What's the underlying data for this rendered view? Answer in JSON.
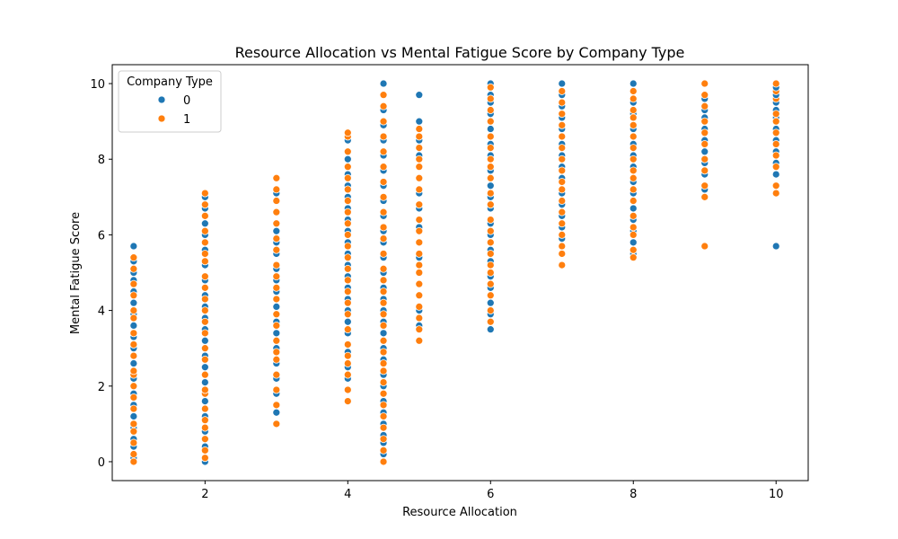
{
  "chart_data": {
    "type": "scatter",
    "title": "Resource Allocation vs Mental Fatigue Score by Company Type",
    "xlabel": "Resource Allocation",
    "ylabel": "Mental Fatigue Score",
    "xlim": [
      0.7,
      10.45
    ],
    "ylim": [
      -0.5,
      10.5
    ],
    "xticks": [
      2,
      4,
      6,
      8,
      10
    ],
    "yticks": [
      0,
      2,
      4,
      6,
      8,
      10
    ],
    "grid": false,
    "legend": {
      "title": "Company Type",
      "placement": "top-left"
    },
    "series": [
      {
        "name": "0",
        "color": "#1f77b4",
        "columns": [
          {
            "x": 1,
            "y": [
              0.1,
              0.4,
              0.6,
              0.9,
              1.2,
              1.5,
              1.8,
              2.2,
              2.6,
              3.0,
              3.3,
              3.6,
              3.9,
              4.2,
              4.5,
              4.8,
              5.0,
              5.3,
              5.7
            ]
          },
          {
            "x": 2,
            "y": [
              0.0,
              0.4,
              0.8,
              1.2,
              1.6,
              2.1,
              2.5,
              2.8,
              3.2,
              3.5,
              3.8,
              4.1,
              4.4,
              4.8,
              5.2,
              5.6,
              6.0,
              6.3,
              6.7,
              7.0
            ]
          },
          {
            "x": 3,
            "y": [
              1.3,
              1.8,
              2.2,
              2.6,
              3.0,
              3.4,
              3.7,
              4.1,
              4.5,
              4.8,
              5.1,
              5.5,
              5.8,
              6.1,
              6.6,
              7.1
            ]
          },
          {
            "x": 4,
            "y": [
              2.2,
              2.5,
              2.9,
              3.4,
              3.7,
              4.0,
              4.3,
              4.6,
              4.9,
              5.2,
              5.5,
              5.8,
              6.1,
              6.4,
              6.7,
              7.0,
              7.3,
              7.6,
              8.0,
              8.5
            ]
          },
          {
            "x": 4.5,
            "y": [
              0.2,
              0.5,
              0.7,
              1.0,
              1.3,
              1.6,
              2.0,
              2.3,
              2.7,
              3.0,
              3.4,
              3.7,
              4.0,
              4.3,
              4.6,
              5.0,
              5.4,
              5.8,
              6.1,
              6.5,
              6.9,
              7.3,
              7.7,
              8.1,
              8.5,
              8.9,
              9.3,
              10.0
            ]
          },
          {
            "x": 5,
            "y": [
              3.6,
              4.0,
              4.4,
              4.7,
              5.0,
              5.4,
              5.8,
              6.2,
              6.7,
              7.1,
              7.5,
              8.1,
              8.5,
              9.0,
              9.7
            ]
          },
          {
            "x": 6,
            "y": [
              3.5,
              3.9,
              4.2,
              4.6,
              4.9,
              5.3,
              5.6,
              6.0,
              6.3,
              6.7,
              7.0,
              7.3,
              7.7,
              8.1,
              8.4,
              8.8,
              9.2,
              9.5,
              9.7,
              10.0
            ]
          },
          {
            "x": 7,
            "y": [
              5.9,
              6.2,
              6.5,
              6.8,
              7.1,
              7.5,
              7.8,
              8.1,
              8.4,
              8.8,
              9.1,
              9.4,
              9.7,
              10.0
            ]
          },
          {
            "x": 8,
            "y": [
              5.5,
              5.8,
              6.1,
              6.4,
              6.7,
              7.1,
              7.4,
              7.8,
              8.1,
              8.4,
              8.8,
              9.2,
              9.5,
              9.8,
              10.0
            ]
          },
          {
            "x": 9,
            "y": [
              7.2,
              7.6,
              7.9,
              8.2,
              8.5,
              8.8,
              9.1,
              9.3,
              9.6
            ]
          },
          {
            "x": 10,
            "y": [
              5.7,
              7.6,
              7.9,
              8.2,
              8.5,
              8.8,
              9.1,
              9.3,
              9.5,
              9.7,
              9.9
            ]
          }
        ]
      },
      {
        "name": "1",
        "color": "#ff7f0e",
        "columns": [
          {
            "x": 1,
            "y": [
              0.0,
              0.2,
              0.5,
              0.8,
              1.0,
              1.4,
              1.7,
              2.0,
              2.3,
              2.4,
              2.8,
              3.1,
              3.4,
              3.8,
              4.0,
              4.4,
              4.7,
              5.1,
              5.4
            ]
          },
          {
            "x": 2,
            "y": [
              0.1,
              0.3,
              0.6,
              0.9,
              1.1,
              1.4,
              1.8,
              1.9,
              2.3,
              2.7,
              3.0,
              3.4,
              3.7,
              4.0,
              4.3,
              4.6,
              4.9,
              5.3,
              5.5,
              5.8,
              6.1,
              6.5,
              6.8,
              7.1
            ]
          },
          {
            "x": 3,
            "y": [
              1.0,
              1.5,
              1.9,
              2.3,
              2.7,
              2.9,
              3.2,
              3.6,
              3.9,
              4.3,
              4.6,
              4.9,
              5.2,
              5.6,
              5.9,
              6.3,
              6.6,
              6.9,
              7.2,
              7.5
            ]
          },
          {
            "x": 4,
            "y": [
              1.6,
              1.9,
              2.3,
              2.6,
              2.8,
              3.1,
              3.5,
              3.9,
              4.2,
              4.5,
              4.8,
              5.1,
              5.4,
              5.7,
              6.0,
              6.3,
              6.6,
              6.9,
              7.2,
              7.5,
              7.8,
              8.2,
              8.6,
              8.7
            ]
          },
          {
            "x": 4.5,
            "y": [
              0.0,
              0.3,
              0.6,
              0.9,
              1.2,
              1.5,
              1.8,
              2.1,
              2.4,
              2.6,
              2.9,
              3.2,
              3.6,
              3.9,
              4.2,
              4.5,
              4.8,
              5.1,
              5.5,
              5.9,
              6.2,
              6.6,
              7.0,
              7.4,
              7.8,
              8.2,
              8.6,
              9.0,
              9.4,
              9.7
            ]
          },
          {
            "x": 5,
            "y": [
              3.2,
              3.5,
              3.8,
              4.1,
              4.4,
              4.7,
              5.0,
              5.2,
              5.5,
              5.8,
              6.1,
              6.4,
              6.8,
              7.2,
              7.5,
              7.8,
              8.0,
              8.3,
              8.6,
              8.8
            ]
          },
          {
            "x": 6,
            "y": [
              3.7,
              4.0,
              4.4,
              4.7,
              5.0,
              5.2,
              5.5,
              5.8,
              6.1,
              6.4,
              6.8,
              7.1,
              7.5,
              7.8,
              8.0,
              8.3,
              8.6,
              9.0,
              9.3,
              9.6,
              9.9
            ]
          },
          {
            "x": 7,
            "y": [
              5.2,
              5.5,
              5.7,
              6.0,
              6.3,
              6.6,
              6.9,
              7.2,
              7.4,
              7.7,
              8.0,
              8.3,
              8.6,
              8.9,
              9.2,
              9.5,
              9.8
            ]
          },
          {
            "x": 8,
            "y": [
              5.4,
              5.6,
              6.0,
              6.2,
              6.5,
              6.9,
              7.2,
              7.5,
              7.7,
              8.0,
              8.3,
              8.6,
              8.9,
              9.1,
              9.3,
              9.6,
              9.8
            ]
          },
          {
            "x": 9,
            "y": [
              5.7,
              7.0,
              7.3,
              7.7,
              8.0,
              8.4,
              8.7,
              9.0,
              9.4,
              9.7,
              10.0
            ]
          },
          {
            "x": 10,
            "y": [
              7.1,
              7.3,
              7.8,
              8.1,
              8.4,
              8.7,
              9.0,
              9.2,
              9.6,
              9.8,
              10.0
            ]
          }
        ]
      }
    ]
  }
}
